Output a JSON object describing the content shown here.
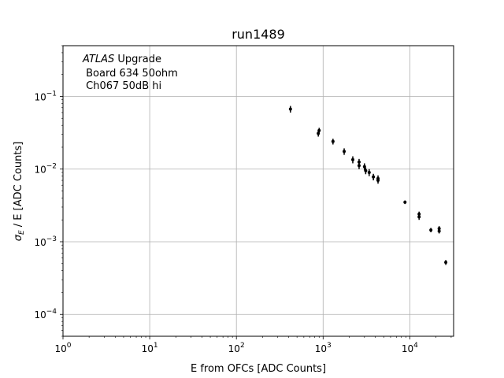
{
  "chart_data": {
    "type": "scatter",
    "title": "run1489",
    "xlabel": "E from OFCs [ADC Counts]",
    "ylabel_symbol": "σ",
    "ylabel_subscript": "E",
    "ylabel_rest": " / E [ADC Counts]",
    "xscale": "log",
    "yscale": "log",
    "xlim": [
      1,
      32000
    ],
    "ylim": [
      5e-05,
      0.5
    ],
    "grid": true,
    "x_ticks": [
      {
        "value": 1,
        "base": "10",
        "exp": "0"
      },
      {
        "value": 10,
        "base": "10",
        "exp": "1"
      },
      {
        "value": 100,
        "base": "10",
        "exp": "2"
      },
      {
        "value": 1000,
        "base": "10",
        "exp": "3"
      },
      {
        "value": 10000,
        "base": "10",
        "exp": "4"
      }
    ],
    "y_ticks": [
      {
        "value": 0.0001,
        "base": "10",
        "exp": "−4"
      },
      {
        "value": 0.001,
        "base": "10",
        "exp": "−3"
      },
      {
        "value": 0.01,
        "base": "10",
        "exp": "−2"
      },
      {
        "value": 0.1,
        "base": "10",
        "exp": "−1"
      }
    ],
    "annotation": {
      "italic": "ATLAS",
      "rest": " Upgrade",
      "line2": " Board 634 50ohm",
      "line3": " Ch067 50dB hi"
    },
    "marker_color": "#000000",
    "points": [
      {
        "x": 420,
        "y": 0.067,
        "yerr": 0.007
      },
      {
        "x": 880,
        "y": 0.031,
        "yerr": 0.003
      },
      {
        "x": 900,
        "y": 0.034,
        "yerr": 0.003
      },
      {
        "x": 1300,
        "y": 0.024,
        "yerr": 0.0022
      },
      {
        "x": 1750,
        "y": 0.0175,
        "yerr": 0.0018
      },
      {
        "x": 2200,
        "y": 0.0135,
        "yerr": 0.0015
      },
      {
        "x": 2600,
        "y": 0.0125,
        "yerr": 0.0013
      },
      {
        "x": 2600,
        "y": 0.0112,
        "yerr": 0.0012
      },
      {
        "x": 3000,
        "y": 0.0108,
        "yerr": 0.0012
      },
      {
        "x": 3100,
        "y": 0.0095,
        "yerr": 0.001
      },
      {
        "x": 3400,
        "y": 0.009,
        "yerr": 0.001
      },
      {
        "x": 3800,
        "y": 0.0078,
        "yerr": 0.0008
      },
      {
        "x": 4300,
        "y": 0.0074,
        "yerr": 0.0008
      },
      {
        "x": 4300,
        "y": 0.007,
        "yerr": 0.0007
      },
      {
        "x": 8800,
        "y": 0.0035,
        "yerr": 0.0002
      },
      {
        "x": 12800,
        "y": 0.0024,
        "yerr": 0.0002
      },
      {
        "x": 12800,
        "y": 0.0022,
        "yerr": 0.0002
      },
      {
        "x": 17500,
        "y": 0.00145,
        "yerr": 0.0001
      },
      {
        "x": 21800,
        "y": 0.00152,
        "yerr": 0.00012
      },
      {
        "x": 21800,
        "y": 0.0014,
        "yerr": 0.0001
      },
      {
        "x": 26000,
        "y": 0.00052,
        "yerr": 4e-05
      }
    ]
  }
}
